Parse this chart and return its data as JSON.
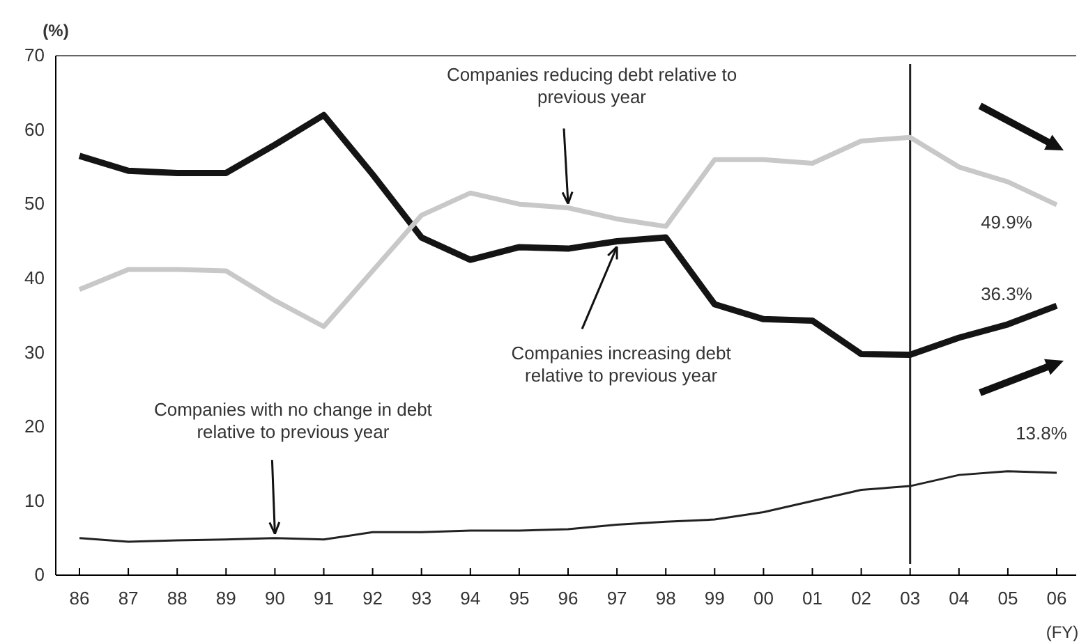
{
  "chart_data": {
    "type": "line",
    "ylabel": "(%)",
    "xlabel": "(FY)",
    "categories": [
      "86",
      "87",
      "88",
      "89",
      "90",
      "91",
      "92",
      "93",
      "94",
      "95",
      "96",
      "97",
      "98",
      "99",
      "00",
      "01",
      "02",
      "03",
      "04",
      "05",
      "06"
    ],
    "series": [
      {
        "color": "#141414",
        "values": [
          56.5,
          54.5,
          54.2,
          54.2,
          58,
          62,
          54,
          45.5,
          42.5,
          44.2,
          44,
          45,
          45.5,
          36.5,
          34.5,
          34.3,
          29.8,
          29.7,
          32,
          33.8,
          36.3
        ],
        "value_labels": [
          null,
          null,
          null,
          null,
          null,
          null,
          null,
          null,
          null,
          null,
          null,
          null,
          null,
          null,
          null,
          null,
          null,
          null,
          null,
          null,
          "36.3%"
        ]
      },
      {
        "color": "#c8c8c8",
        "values": [
          38.5,
          41.2,
          41.2,
          41,
          37,
          33.5,
          41,
          48.5,
          51.5,
          50,
          49.5,
          48,
          47,
          56,
          56,
          55.5,
          58.5,
          59,
          55,
          53,
          49.9
        ],
        "value_labels": [
          null,
          null,
          null,
          null,
          null,
          null,
          null,
          null,
          null,
          null,
          null,
          null,
          null,
          null,
          null,
          null,
          null,
          null,
          null,
          null,
          "49.9%"
        ]
      },
      {
        "color": "#222222",
        "values": [
          5,
          4.5,
          4.7,
          4.8,
          5,
          4.8,
          5.8,
          5.8,
          6,
          6,
          6.2,
          6.8,
          7.2,
          7.5,
          8.5,
          10,
          11.5,
          12,
          13.5,
          14,
          13.8
        ],
        "value_labels": [
          null,
          null,
          null,
          null,
          null,
          null,
          null,
          null,
          null,
          null,
          null,
          null,
          null,
          null,
          null,
          null,
          null,
          null,
          null,
          null,
          "13.8%"
        ]
      }
    ],
    "ylim": [
      0,
      70
    ],
    "yticks": [
      0,
      10,
      20,
      30,
      40,
      50,
      60,
      70
    ],
    "grid": false,
    "marker": "none",
    "line_style": "solid",
    "ref_lines": [
      {
        "axis": "x",
        "value": "03",
        "color": "#222222"
      }
    ],
    "annotations": [
      {
        "text": "Companies reducing debt relative to previous year",
        "x": "96",
        "y": 49.5
      },
      {
        "text": "Companies increasing debt relative to previous year",
        "x": "97",
        "y": 45
      },
      {
        "text": "Companies with no change in debt relative to previous year",
        "x": "90",
        "y": 5
      }
    ]
  }
}
